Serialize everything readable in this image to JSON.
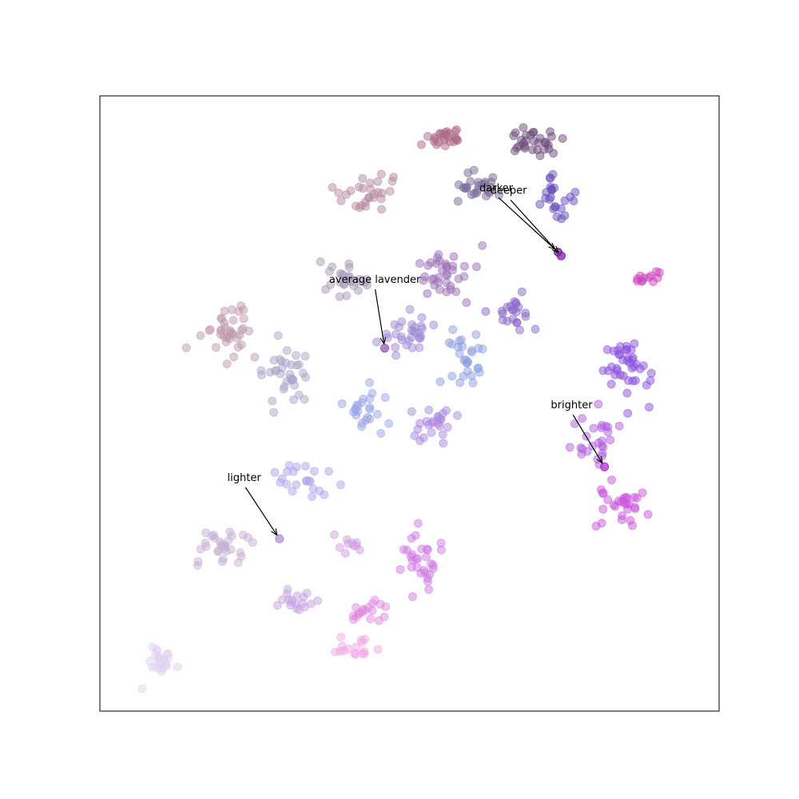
{
  "chart_data": {
    "type": "scatter",
    "title": "",
    "xlabel": "",
    "ylabel": "",
    "xlim": [
      0,
      100
    ],
    "ylim": [
      0,
      100
    ],
    "axis_ticks_visible": false,
    "grid": false,
    "legend": "none",
    "marker_opacity": 0.5,
    "clusters": [
      {
        "cx": 56,
        "cy": 93,
        "sx": 3.0,
        "sy": 1.6,
        "n": 26,
        "color": "#b06a88"
      },
      {
        "cx": 70,
        "cy": 92,
        "sx": 4.0,
        "sy": 2.0,
        "n": 30,
        "color": "#6b4a7a"
      },
      {
        "cx": 44,
        "cy": 84,
        "sx": 4.2,
        "sy": 2.4,
        "n": 28,
        "color": "#b58aa0"
      },
      {
        "cx": 62,
        "cy": 85,
        "sx": 3.6,
        "sy": 2.2,
        "n": 26,
        "color": "#7a6a98"
      },
      {
        "cx": 74,
        "cy": 83,
        "sx": 2.8,
        "sy": 3.2,
        "n": 24,
        "color": "#6a50c0"
      },
      {
        "cx": 56,
        "cy": 71,
        "sx": 4.2,
        "sy": 3.2,
        "n": 36,
        "color": "#9c72b8"
      },
      {
        "cx": 40,
        "cy": 70,
        "sx": 3.6,
        "sy": 2.6,
        "n": 26,
        "color": "#a89ab8"
      },
      {
        "cx": 67,
        "cy": 65,
        "sx": 3.0,
        "sy": 2.6,
        "n": 22,
        "color": "#8a68c8"
      },
      {
        "cx": 21,
        "cy": 62,
        "sx": 4.0,
        "sy": 4.0,
        "n": 38,
        "color": "#c09ab0"
      },
      {
        "cx": 30,
        "cy": 55,
        "sx": 3.2,
        "sy": 4.8,
        "n": 34,
        "color": "#a8a8c8"
      },
      {
        "cx": 50,
        "cy": 61,
        "sx": 4.0,
        "sy": 3.0,
        "n": 30,
        "color": "#a08ad8"
      },
      {
        "cx": 59,
        "cy": 57,
        "sx": 3.2,
        "sy": 4.0,
        "n": 28,
        "color": "#8ea0e0"
      },
      {
        "cx": 43,
        "cy": 49,
        "sx": 3.2,
        "sy": 2.8,
        "n": 24,
        "color": "#9aa6e8"
      },
      {
        "cx": 54,
        "cy": 46,
        "sx": 3.0,
        "sy": 3.0,
        "n": 24,
        "color": "#aa88e0"
      },
      {
        "cx": 33,
        "cy": 38,
        "sx": 3.4,
        "sy": 2.6,
        "n": 22,
        "color": "#b4a4ec"
      },
      {
        "cx": 85,
        "cy": 56,
        "sx": 4.0,
        "sy": 4.2,
        "n": 40,
        "color": "#8a50e0"
      },
      {
        "cx": 80,
        "cy": 44,
        "sx": 3.0,
        "sy": 3.6,
        "n": 26,
        "color": "#b060e0"
      },
      {
        "cx": 84,
        "cy": 34,
        "sx": 4.0,
        "sy": 2.8,
        "n": 30,
        "color": "#cc55dc"
      },
      {
        "cx": 89,
        "cy": 70,
        "sx": 1.8,
        "sy": 1.0,
        "n": 12,
        "color": "#cc44bb"
      },
      {
        "cx": 20,
        "cy": 27,
        "sx": 3.8,
        "sy": 2.4,
        "n": 30,
        "color": "#c8b0d4"
      },
      {
        "cx": 32,
        "cy": 18,
        "sx": 3.0,
        "sy": 1.8,
        "n": 18,
        "color": "#c8a4e4"
      },
      {
        "cx": 44,
        "cy": 16,
        "sx": 2.6,
        "sy": 2.0,
        "n": 18,
        "color": "#e08ae0"
      },
      {
        "cx": 52,
        "cy": 24,
        "sx": 3.0,
        "sy": 4.0,
        "n": 30,
        "color": "#d07ae6"
      },
      {
        "cx": 40,
        "cy": 27,
        "sx": 2.6,
        "sy": 1.4,
        "n": 10,
        "color": "#d0a0e0"
      },
      {
        "cx": 10,
        "cy": 8,
        "sx": 2.6,
        "sy": 2.2,
        "n": 24,
        "color": "#e2d2f2"
      },
      {
        "cx": 41,
        "cy": 10,
        "sx": 3.0,
        "sy": 1.6,
        "n": 16,
        "color": "#f2a8e6"
      }
    ],
    "highlighted_points": [
      {
        "label": "darker",
        "x": 74.0,
        "y": 74.6,
        "color": "#6a2a9a"
      },
      {
        "label": "deeper",
        "x": 74.5,
        "y": 74.0,
        "color": "#7a2ab0"
      },
      {
        "label": "average lavender",
        "x": 46.0,
        "y": 59.0,
        "color": "#9a5ab8"
      },
      {
        "label": "brighter",
        "x": 81.5,
        "y": 39.7,
        "color": "#b030d8"
      },
      {
        "label": "lighter",
        "x": 29.0,
        "y": 28.0,
        "color": "#b090d8"
      }
    ],
    "annotations": [
      {
        "text": "darker",
        "x": 74.0,
        "y": 74.6,
        "text_x": 64.0,
        "text_y": 84.5
      },
      {
        "text": "deeper",
        "x": 74.5,
        "y": 74.0,
        "text_x": 66.0,
        "text_y": 84.1
      },
      {
        "text": "average lavender",
        "x": 46.0,
        "y": 59.0,
        "text_x": 44.4,
        "text_y": 69.6
      },
      {
        "text": "brighter",
        "x": 81.5,
        "y": 39.7,
        "text_x": 76.2,
        "text_y": 49.2
      },
      {
        "text": "lighter",
        "x": 29.0,
        "y": 28.0,
        "text_x": 23.3,
        "text_y": 37.4
      }
    ]
  }
}
